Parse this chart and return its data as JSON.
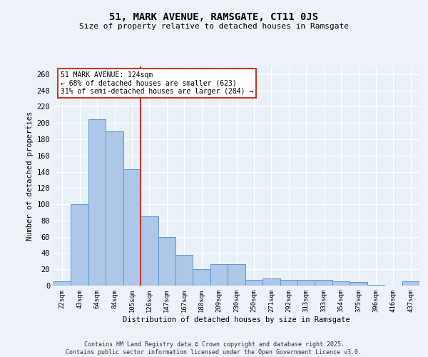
{
  "title": "51, MARK AVENUE, RAMSGATE, CT11 0JS",
  "subtitle": "Size of property relative to detached houses in Ramsgate",
  "xlabel": "Distribution of detached houses by size in Ramsgate",
  "ylabel": "Number of detached properties",
  "categories": [
    "22sqm",
    "43sqm",
    "64sqm",
    "84sqm",
    "105sqm",
    "126sqm",
    "147sqm",
    "167sqm",
    "188sqm",
    "209sqm",
    "230sqm",
    "250sqm",
    "271sqm",
    "292sqm",
    "313sqm",
    "333sqm",
    "354sqm",
    "375sqm",
    "396sqm",
    "416sqm",
    "437sqm"
  ],
  "values": [
    5,
    100,
    205,
    190,
    143,
    85,
    60,
    38,
    20,
    26,
    26,
    7,
    9,
    7,
    7,
    7,
    5,
    4,
    1,
    0,
    5
  ],
  "bar_color": "#aec6e8",
  "bar_edge_color": "#5a9bd4",
  "vline_index": 5,
  "vline_color": "#c0392b",
  "annotation_text": "51 MARK AVENUE: 124sqm\n← 68% of detached houses are smaller (623)\n31% of semi-detached houses are larger (284) →",
  "annotation_box_color": "#ffffff",
  "annotation_box_edge": "#c0392b",
  "ylim": [
    0,
    270
  ],
  "yticks": [
    0,
    20,
    40,
    60,
    80,
    100,
    120,
    140,
    160,
    180,
    200,
    220,
    240,
    260
  ],
  "bg_color": "#e8f0f8",
  "fig_bg_color": "#eef2f8",
  "footer_line1": "Contains HM Land Registry data © Crown copyright and database right 2025.",
  "footer_line2": "Contains public sector information licensed under the Open Government Licence v3.0."
}
